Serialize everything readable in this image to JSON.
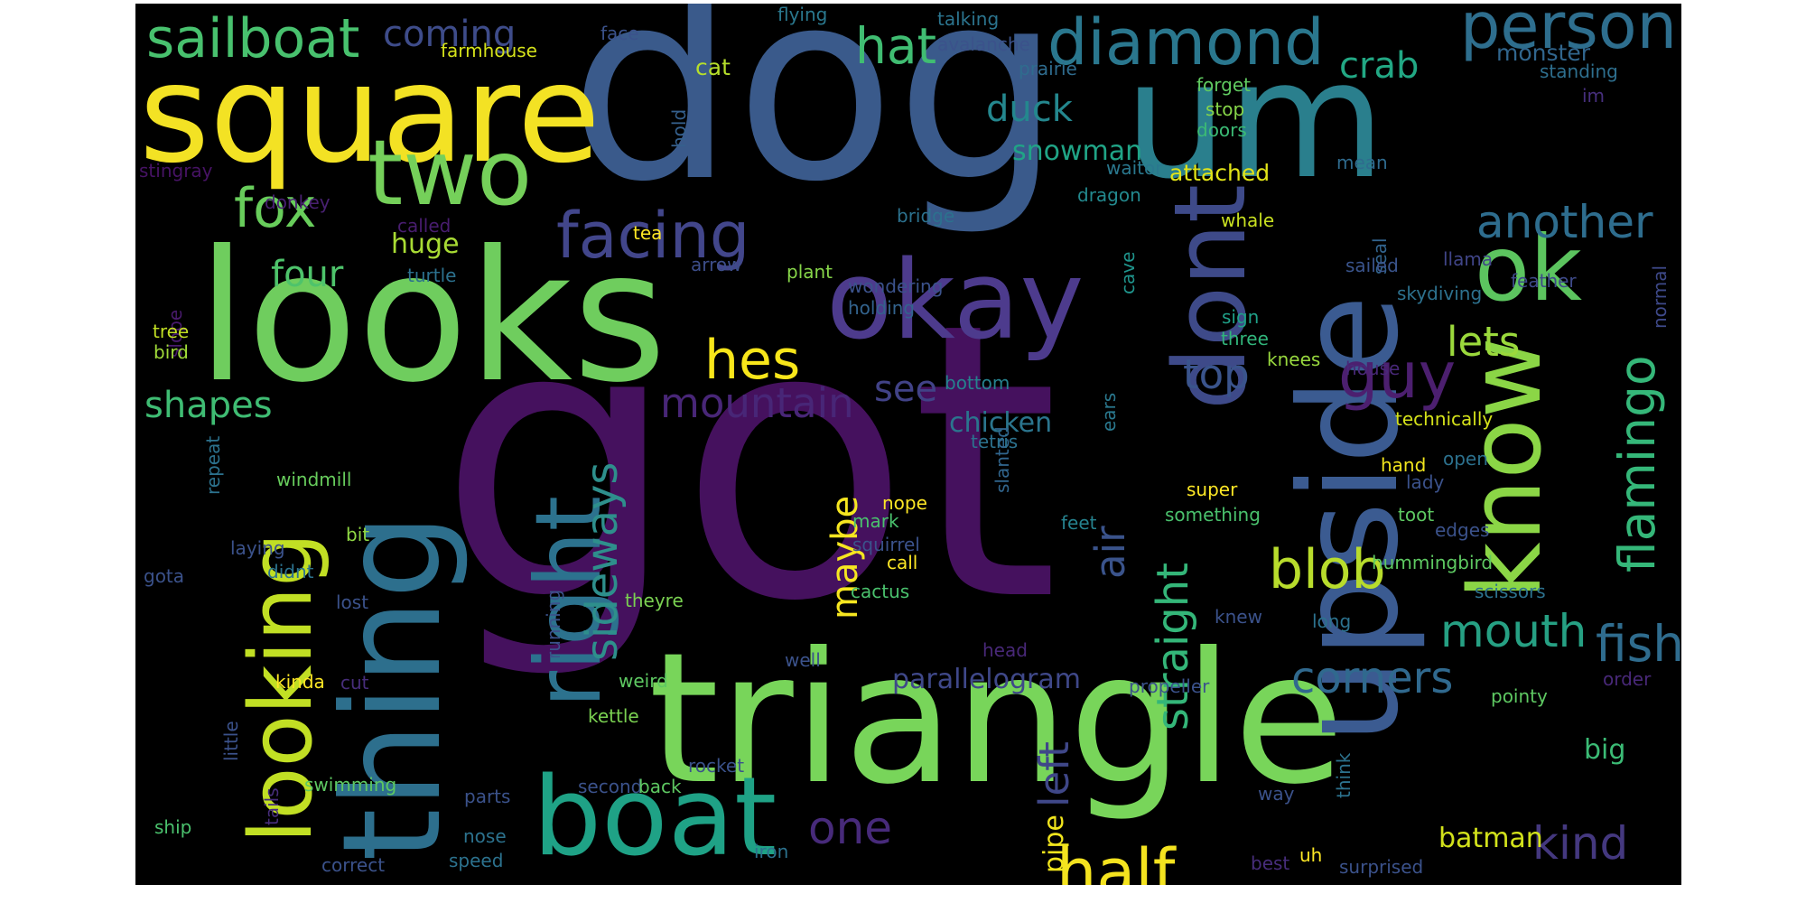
{
  "words": [
    {
      "id": "got",
      "text": "got",
      "color": "#45115e"
    },
    {
      "id": "dog",
      "text": "dog",
      "color": "#3a5a8b"
    },
    {
      "id": "triangle",
      "text": "triangle",
      "color": "#78d55a"
    },
    {
      "id": "looks",
      "text": "looks",
      "color": "#6fcd5e"
    },
    {
      "id": "um",
      "text": "um",
      "color": "#2a7f8d"
    },
    {
      "id": "upside",
      "text": "upside",
      "color": "#3b5b91"
    },
    {
      "id": "thing",
      "text": "thing",
      "color": "#2d6f8d"
    },
    {
      "id": "square",
      "text": "square",
      "color": "#f3e224"
    },
    {
      "id": "okay",
      "text": "okay",
      "color": "#4d3b8d"
    },
    {
      "id": "boat",
      "text": "boat",
      "color": "#1fa286"
    },
    {
      "id": "dont",
      "text": "dont",
      "color": "#3e4a89"
    },
    {
      "id": "know",
      "text": "know",
      "color": "#8bd646"
    },
    {
      "id": "two",
      "text": "two",
      "color": "#75d05a"
    },
    {
      "id": "ok",
      "text": "ok",
      "color": "#5cc45f"
    },
    {
      "id": "right",
      "text": "right",
      "color": "#2c728e"
    },
    {
      "id": "looking",
      "text": "looking",
      "color": "#c1df24"
    },
    {
      "id": "diamond",
      "text": "diamond",
      "color": "#2a778e"
    },
    {
      "id": "person",
      "text": "person",
      "color": "#2e6e8e"
    },
    {
      "id": "facing",
      "text": "facing",
      "color": "#42468b"
    },
    {
      "id": "guy",
      "text": "guy",
      "color": "#4c1f6f"
    },
    {
      "id": "half",
      "text": "half",
      "color": "#f4e31f"
    },
    {
      "id": "sailboat",
      "text": "sailboat",
      "color": "#48c16e"
    },
    {
      "id": "hes",
      "text": "hes",
      "color": "#f8e61a"
    },
    {
      "id": "blob",
      "text": "blob",
      "color": "#b8dc2c"
    },
    {
      "id": "fox",
      "text": "fox",
      "color": "#68cd5b"
    },
    {
      "id": "hat",
      "text": "hat",
      "color": "#40bd72"
    },
    {
      "id": "flamingo",
      "text": "flamingo",
      "color": "#35b779"
    },
    {
      "id": "fish",
      "text": "fish",
      "color": "#2f6c8e"
    },
    {
      "id": "mouth",
      "text": "mouth",
      "color": "#26a083"
    },
    {
      "id": "kind",
      "text": "kind",
      "color": "#44387f"
    },
    {
      "id": "one",
      "text": "one",
      "color": "#472a7a"
    },
    {
      "id": "another",
      "text": "another",
      "color": "#2e6d8e"
    },
    {
      "id": "corners",
      "text": "corners",
      "color": "#30698e"
    },
    {
      "id": "sideways",
      "text": "sideways",
      "color": "#2e8f8c"
    },
    {
      "id": "straight",
      "text": "straight",
      "color": "#34b679"
    },
    {
      "id": "air",
      "text": "air",
      "color": "#3a538b"
    },
    {
      "id": "left",
      "text": "left",
      "color": "#3f4788"
    },
    {
      "id": "mountain",
      "text": "mountain",
      "color": "#482677"
    },
    {
      "id": "top",
      "text": "top",
      "color": "#3a548c"
    },
    {
      "id": "lets",
      "text": "lets",
      "color": "#9bd93c"
    },
    {
      "id": "maybe",
      "text": "maybe",
      "color": "#f6e620"
    },
    {
      "id": "four",
      "text": "four",
      "color": "#4ec36b"
    },
    {
      "id": "shapes",
      "text": "shapes",
      "color": "#3fbc73"
    },
    {
      "id": "coming",
      "text": "coming",
      "color": "#3e4c8a"
    },
    {
      "id": "crab",
      "text": "crab",
      "color": "#22a884"
    },
    {
      "id": "duck",
      "text": "duck",
      "color": "#24878e"
    },
    {
      "id": "see",
      "text": "see",
      "color": "#414287"
    },
    {
      "id": "chicken",
      "text": "chicken",
      "color": "#2b758e"
    },
    {
      "id": "snowman",
      "text": "snowman",
      "color": "#20a486"
    },
    {
      "id": "parallelogram",
      "text": "parallelogram",
      "color": "#3f4889"
    },
    {
      "id": "big",
      "text": "big",
      "color": "#3bbb75"
    },
    {
      "id": "batman",
      "text": "batman",
      "color": "#d2e21b"
    },
    {
      "id": "pipe",
      "text": "pipe",
      "color": "#f1e51d"
    },
    {
      "id": "huge",
      "text": "huge",
      "color": "#a8db34"
    },
    {
      "id": "monster",
      "text": "monster",
      "color": "#31668e"
    },
    {
      "id": "farmhouse",
      "text": "farmhouse",
      "color": "#d5e21a"
    },
    {
      "id": "face",
      "text": "face",
      "color": "#3b528b"
    },
    {
      "id": "flying",
      "text": "flying",
      "color": "#2a788e"
    },
    {
      "id": "talking",
      "text": "talking",
      "color": "#2b748e"
    },
    {
      "id": "avalanche",
      "text": "avalanche",
      "color": "#3b528b"
    },
    {
      "id": "cat",
      "text": "cat",
      "color": "#b5de2b"
    },
    {
      "id": "prairie",
      "text": "prairie",
      "color": "#2f6c8e"
    },
    {
      "id": "standing",
      "text": "standing",
      "color": "#2e6f8e"
    },
    {
      "id": "forget",
      "text": "forget",
      "color": "#60ca60"
    },
    {
      "id": "stop",
      "text": "stop",
      "color": "#86d549"
    },
    {
      "id": "doors",
      "text": "doors",
      "color": "#3bbb75"
    },
    {
      "id": "im",
      "text": "im",
      "color": "#472f7d"
    },
    {
      "id": "stingray",
      "text": "stingray",
      "color": "#471365"
    },
    {
      "id": "donkey",
      "text": "donkey",
      "color": "#482071"
    },
    {
      "id": "called",
      "text": "called",
      "color": "#481d6f"
    },
    {
      "id": "hold",
      "text": "hold",
      "color": "#35608d"
    },
    {
      "id": "waitor",
      "text": "waitor",
      "color": "#2a788e"
    },
    {
      "id": "dragon",
      "text": "dragon",
      "color": "#23898e"
    },
    {
      "id": "attached",
      "text": "attached",
      "color": "#e2e418"
    },
    {
      "id": "mean",
      "text": "mean",
      "color": "#2f6b8e"
    },
    {
      "id": "whale",
      "text": "whale",
      "color": "#c8e020"
    },
    {
      "id": "bridge",
      "text": "bridge",
      "color": "#2c718e"
    },
    {
      "id": "seal",
      "text": "seal",
      "color": "#32648e"
    },
    {
      "id": "sailed",
      "text": "sailed",
      "color": "#3a548c"
    },
    {
      "id": "tea",
      "text": "tea",
      "color": "#fde725"
    },
    {
      "id": "cave",
      "text": "cave",
      "color": "#1f948c"
    },
    {
      "id": "arrow",
      "text": "arrow",
      "color": "#3d4e8a"
    },
    {
      "id": "plant",
      "text": "plant",
      "color": "#86d549"
    },
    {
      "id": "turtle",
      "text": "turtle",
      "color": "#2c718e"
    },
    {
      "id": "wondering",
      "text": "wondering",
      "color": "#3b528b"
    },
    {
      "id": "holding",
      "text": "holding",
      "color": "#33638d"
    },
    {
      "id": "llama",
      "text": "llama",
      "color": "#404588"
    },
    {
      "id": "feather",
      "text": "feather",
      "color": "#3e4a89"
    },
    {
      "id": "skydiving",
      "text": "skydiving",
      "color": "#2d718e"
    },
    {
      "id": "normal",
      "text": "normal",
      "color": "#3e4989"
    },
    {
      "id": "slope",
      "text": "slope",
      "color": "#481a6c"
    },
    {
      "id": "tree",
      "text": "tree",
      "color": "#c2df23"
    },
    {
      "id": "bird",
      "text": "bird",
      "color": "#a0da39"
    },
    {
      "id": "sign",
      "text": "sign",
      "color": "#1fa088"
    },
    {
      "id": "three",
      "text": "three",
      "color": "#31b57b"
    },
    {
      "id": "knees",
      "text": "knees",
      "color": "#98d83e"
    },
    {
      "id": "house",
      "text": "house",
      "color": "#482878"
    },
    {
      "id": "ears",
      "text": "ears",
      "color": "#2a788e"
    },
    {
      "id": "bottom",
      "text": "bottom",
      "color": "#26828e"
    },
    {
      "id": "slanted",
      "text": "slanted",
      "color": "#31668e"
    },
    {
      "id": "technically",
      "text": "technically",
      "color": "#d5e21a"
    },
    {
      "id": "tetris",
      "text": "tetris",
      "color": "#2c728e"
    },
    {
      "id": "hand",
      "text": "hand",
      "color": "#f1e51d"
    },
    {
      "id": "open",
      "text": "open",
      "color": "#2c718e"
    },
    {
      "id": "lady",
      "text": "lady",
      "color": "#3b528b"
    },
    {
      "id": "windmill",
      "text": "windmill",
      "color": "#67cc5c"
    },
    {
      "id": "repeat",
      "text": "repeat",
      "color": "#2c728e"
    },
    {
      "id": "nope",
      "text": "nope",
      "color": "#fde725"
    },
    {
      "id": "super",
      "text": "super",
      "color": "#fde725"
    },
    {
      "id": "something",
      "text": "something",
      "color": "#4ac16d"
    },
    {
      "id": "toot",
      "text": "toot",
      "color": "#5ec962"
    },
    {
      "id": "mark",
      "text": "mark",
      "color": "#4ac16d"
    },
    {
      "id": "feet",
      "text": "feet",
      "color": "#26828e"
    },
    {
      "id": "edges",
      "text": "edges",
      "color": "#3b528b"
    },
    {
      "id": "laying",
      "text": "laying",
      "color": "#3b528b"
    },
    {
      "id": "bit",
      "text": "bit",
      "color": "#8fd744"
    },
    {
      "id": "squirrel",
      "text": "squirrel",
      "color": "#3b528b"
    },
    {
      "id": "call",
      "text": "call",
      "color": "#fde725"
    },
    {
      "id": "hummingbird",
      "text": "hummingbird",
      "color": "#5ec962"
    },
    {
      "id": "gota",
      "text": "gota",
      "color": "#3b528b"
    },
    {
      "id": "didnt",
      "text": "didnt",
      "color": "#2c728e"
    },
    {
      "id": "lost",
      "text": "lost",
      "color": "#3b528b"
    },
    {
      "id": "theyre",
      "text": "theyre",
      "color": "#7ad151"
    },
    {
      "id": "cactus",
      "text": "cactus",
      "color": "#4ac16d"
    },
    {
      "id": "scissors",
      "text": "scissors",
      "color": "#2c728e"
    },
    {
      "id": "running",
      "text": "running",
      "color": "#3b528b"
    },
    {
      "id": "knew",
      "text": "knew",
      "color": "#3b528b"
    },
    {
      "id": "long",
      "text": "long",
      "color": "#2c728e"
    },
    {
      "id": "well",
      "text": "well",
      "color": "#3b528b"
    },
    {
      "id": "head",
      "text": "head",
      "color": "#482878"
    },
    {
      "id": "weird",
      "text": "weird",
      "color": "#5ec962"
    },
    {
      "id": "kinda",
      "text": "kinda",
      "color": "#fde725"
    },
    {
      "id": "cut",
      "text": "cut",
      "color": "#472d7b"
    },
    {
      "id": "propeller",
      "text": "propeller",
      "color": "#3b528b"
    },
    {
      "id": "order",
      "text": "order",
      "color": "#482878"
    },
    {
      "id": "kettle",
      "text": "kettle",
      "color": "#7ad151"
    },
    {
      "id": "pointy",
      "text": "pointy",
      "color": "#5ec962"
    },
    {
      "id": "little",
      "text": "little",
      "color": "#3b528b"
    },
    {
      "id": "think",
      "text": "think",
      "color": "#2c728e"
    },
    {
      "id": "rocket",
      "text": "rocket",
      "color": "#3b528b"
    },
    {
      "id": "swimming",
      "text": "swimming",
      "color": "#5ec962"
    },
    {
      "id": "parts",
      "text": "parts",
      "color": "#3b528b"
    },
    {
      "id": "second",
      "text": "second",
      "color": "#3b528b"
    },
    {
      "id": "back",
      "text": "back",
      "color": "#5ec962"
    },
    {
      "id": "tails",
      "text": "tails",
      "color": "#472d7b"
    },
    {
      "id": "way",
      "text": "way",
      "color": "#3b528b"
    },
    {
      "id": "ship",
      "text": "ship",
      "color": "#4ac16d"
    },
    {
      "id": "nose",
      "text": "nose",
      "color": "#2c728e"
    },
    {
      "id": "correct",
      "text": "correct",
      "color": "#3b528b"
    },
    {
      "id": "speed",
      "text": "speed",
      "color": "#2c728e"
    },
    {
      "id": "iron",
      "text": "iron",
      "color": "#2c728e"
    },
    {
      "id": "best",
      "text": "best",
      "color": "#472d7b"
    },
    {
      "id": "uh",
      "text": "uh",
      "color": "#fde725"
    },
    {
      "id": "surprised",
      "text": "surprised",
      "color": "#3b528b"
    },
    {
      "id": "dash1",
      "text": "-",
      "color": "#3b528b"
    },
    {
      "id": "dash2",
      "text": "-",
      "color": "#fde725"
    }
  ]
}
